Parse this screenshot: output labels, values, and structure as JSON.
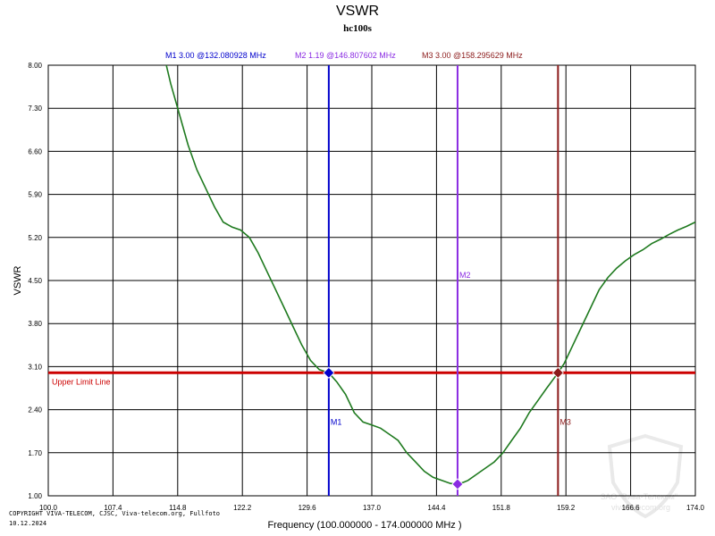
{
  "chart_data": {
    "type": "line",
    "title": "VSWR",
    "subtitle": "hc100s",
    "xlabel": "Frequency (100.000000 - 174.000000 MHz )",
    "ylabel": "VSWR",
    "xlim": [
      100.0,
      174.0
    ],
    "ylim": [
      1.0,
      8.0
    ],
    "x_ticks": [
      100.0,
      107.4,
      114.8,
      122.2,
      129.6,
      137.0,
      144.4,
      151.8,
      159.2,
      166.6,
      174.0
    ],
    "x_tick_labels": [
      "100.0",
      "107.4",
      "114.8",
      "122.2",
      "129.6",
      "137.0",
      "144.4",
      "151.8",
      "159.2",
      "166.6",
      "174.0"
    ],
    "y_ticks": [
      1.0,
      1.7,
      2.4,
      3.1,
      3.8,
      4.5,
      5.2,
      5.9,
      6.6,
      7.3,
      8.0
    ],
    "y_tick_labels": [
      "1.00",
      "1.70",
      "2.40",
      "3.10",
      "3.80",
      "4.50",
      "5.20",
      "5.90",
      "6.60",
      "7.30",
      "8.00"
    ],
    "grid": true,
    "series": [
      {
        "name": "VSWR",
        "color": "#1f7a1f",
        "x": [
          113.5,
          114.0,
          115.0,
          116.0,
          117.0,
          118.0,
          119.0,
          120.0,
          121.0,
          122.0,
          123.0,
          124.0,
          125.0,
          126.0,
          127.0,
          128.0,
          129.0,
          130.0,
          131.0,
          132.08,
          133.0,
          134.0,
          135.0,
          136.0,
          137.0,
          138.0,
          139.0,
          140.0,
          141.0,
          142.0,
          143.0,
          144.0,
          145.0,
          146.0,
          146.8,
          147.5,
          148.0,
          149.0,
          150.0,
          151.0,
          152.0,
          153.0,
          154.0,
          155.0,
          156.0,
          157.0,
          158.3,
          159.0,
          160.0,
          161.0,
          162.0,
          163.0,
          164.0,
          165.0,
          166.0,
          167.0,
          168.0,
          169.0,
          170.0,
          171.0,
          172.0,
          173.0,
          174.0
        ],
        "y": [
          8.0,
          7.7,
          7.2,
          6.7,
          6.3,
          6.0,
          5.7,
          5.45,
          5.37,
          5.32,
          5.2,
          4.95,
          4.65,
          4.35,
          4.05,
          3.75,
          3.45,
          3.2,
          3.05,
          3.0,
          2.85,
          2.65,
          2.35,
          2.2,
          2.15,
          2.1,
          2.0,
          1.9,
          1.7,
          1.55,
          1.4,
          1.3,
          1.25,
          1.2,
          1.19,
          1.22,
          1.25,
          1.35,
          1.45,
          1.55,
          1.7,
          1.9,
          2.1,
          2.35,
          2.55,
          2.75,
          3.0,
          3.15,
          3.45,
          3.75,
          4.05,
          4.35,
          4.55,
          4.7,
          4.82,
          4.92,
          5.0,
          5.1,
          5.17,
          5.25,
          5.32,
          5.38,
          5.45
        ]
      }
    ],
    "limit_line": {
      "label": "Upper Limit Line",
      "value": 3.0,
      "color": "#cc0000"
    },
    "markers": [
      {
        "id": "M1",
        "freq": 132.080928,
        "vswr": 3.0,
        "color": "#0000cc",
        "readout": "M1   3.00 @132.080928 MHz"
      },
      {
        "id": "M2",
        "freq": 146.807602,
        "vswr": 1.19,
        "color": "#8a2be2",
        "readout": "M2   1.19 @146.807602 MHz"
      },
      {
        "id": "M3",
        "freq": 158.295629,
        "vswr": 3.0,
        "color": "#8b1a1a",
        "readout": "M3   3.00 @158.295629 MHz"
      }
    ]
  },
  "footer": {
    "copyright": "COPYRIGHT VIVA-TELECOM, CJSC, Viva-telecom.org, Fullfoto",
    "date": "10.12.2024"
  },
  "watermark": {
    "line1": "ЗАО \"Вива-Телеком\"",
    "line2": "viva-telecom.org"
  }
}
